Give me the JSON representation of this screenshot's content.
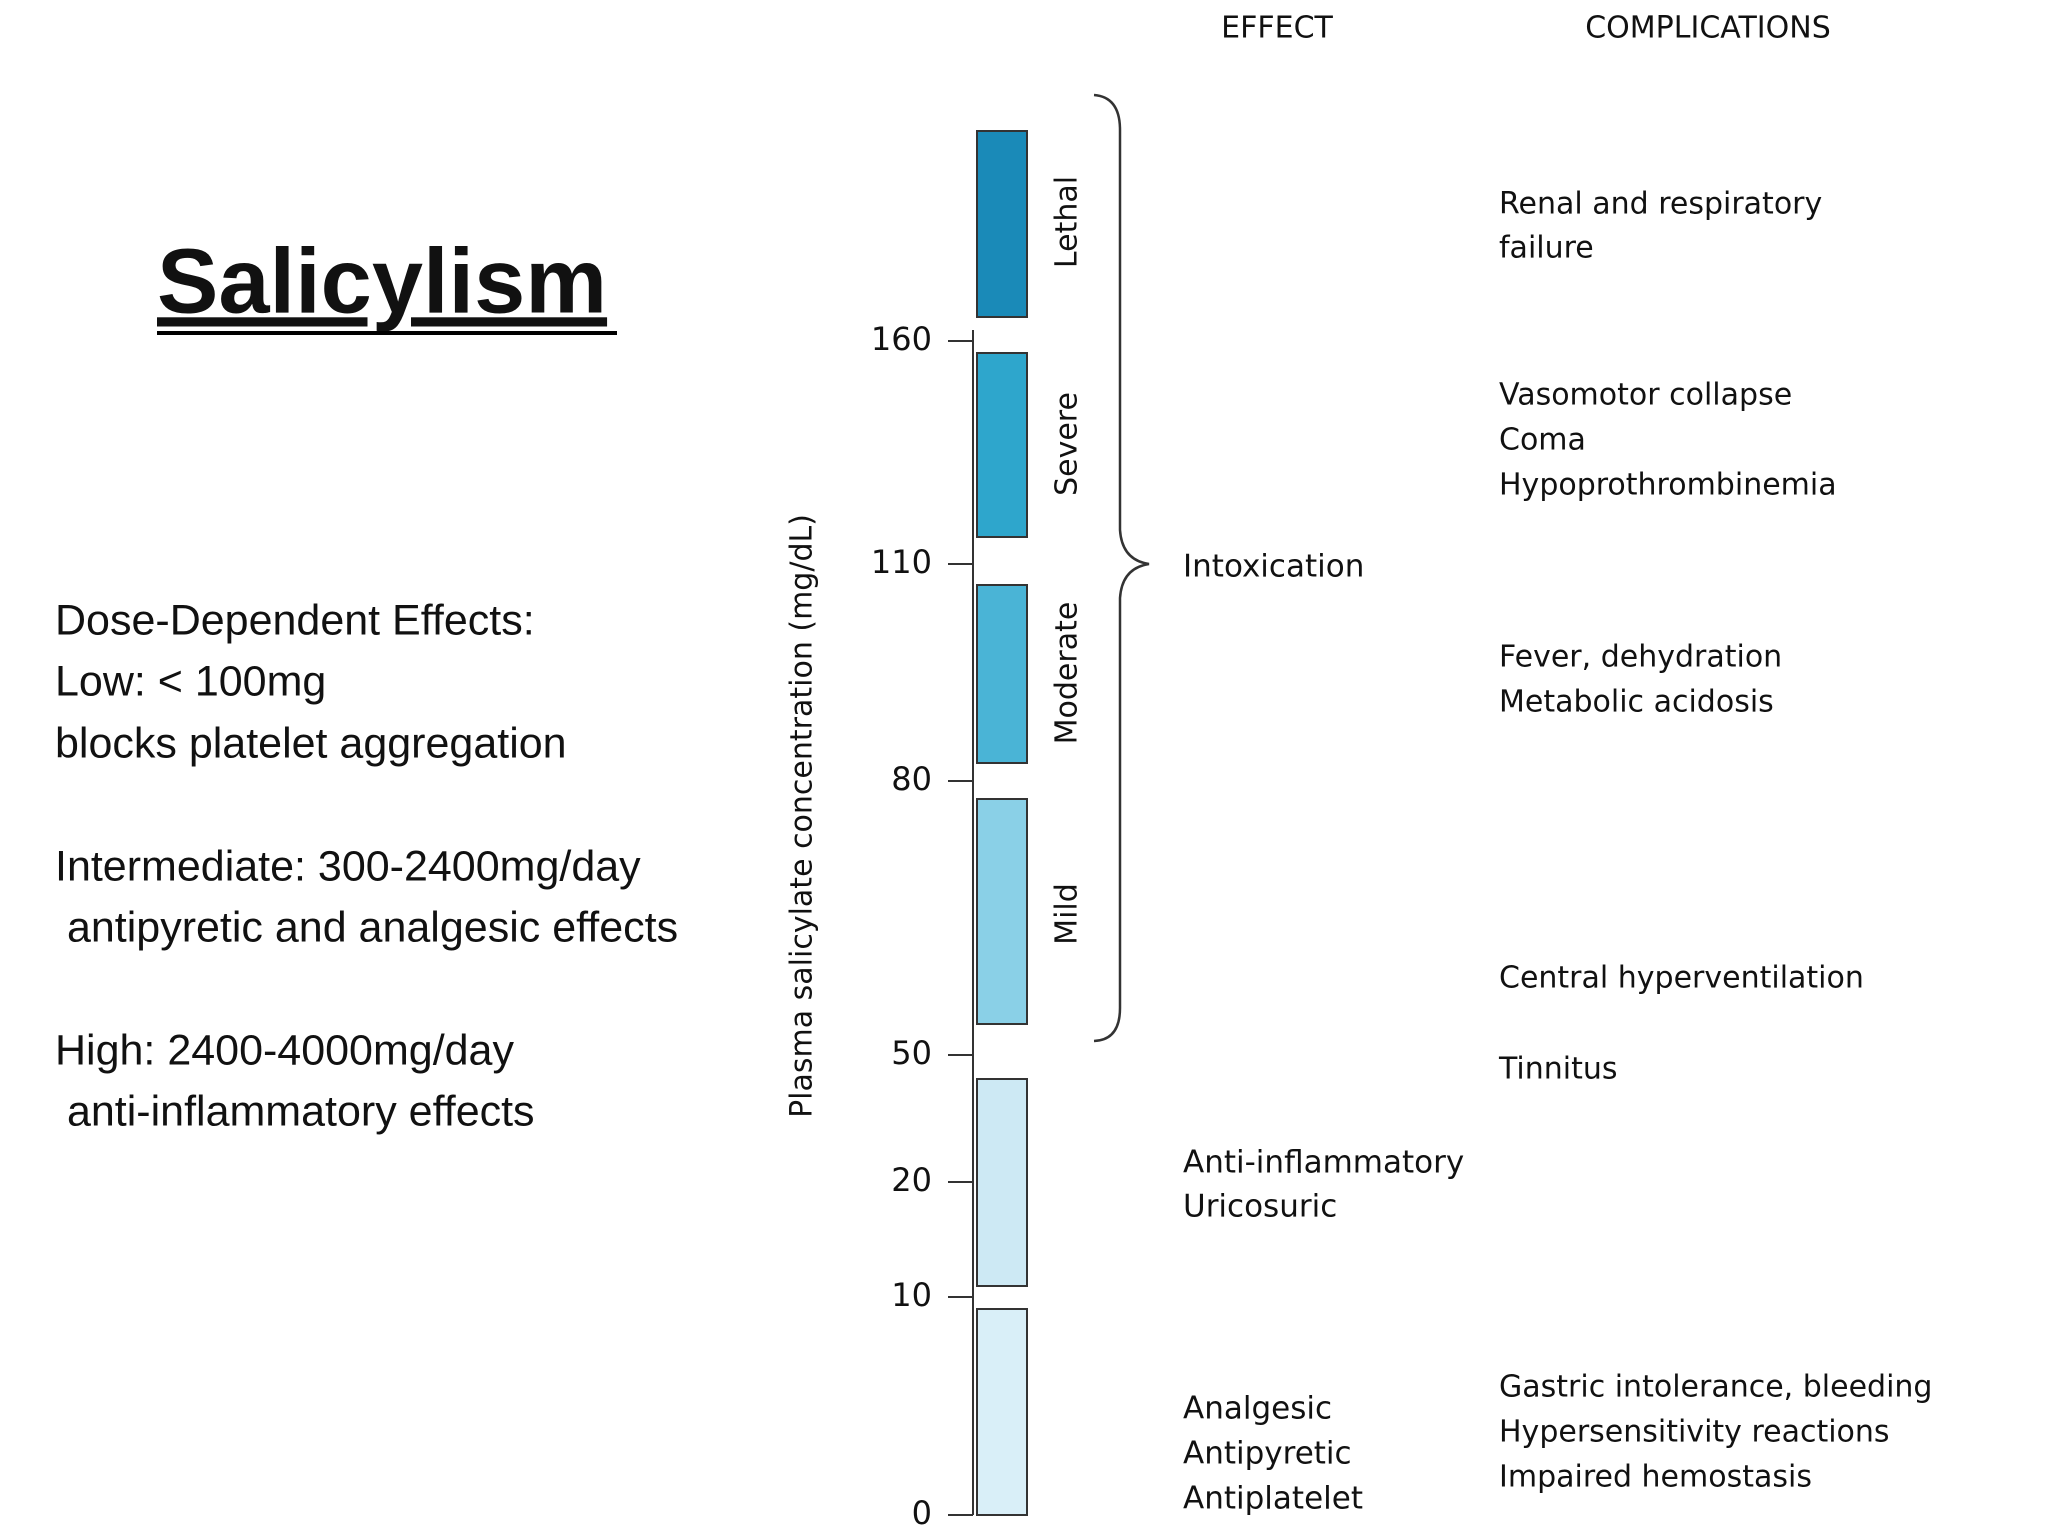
{
  "slide": {
    "title": "Salicylism",
    "notes": [
      "Dose-Dependent Effects:",
      "Low: < 100mg",
      "blocks platelet aggregation",
      "Intermediate: 300-2400mg/day",
      " antipyretic and analgesic effects",
      "High: 2400-4000mg/day",
      " anti-inflammatory effects"
    ]
  },
  "figure": {
    "axis_label": "Plasma salicylate concentration (mg/dL)",
    "ticks": [
      0,
      10,
      20,
      50,
      80,
      110,
      160
    ],
    "headers": {
      "effect": "EFFECT",
      "complications": "COMPLICATIONS"
    },
    "bands": [
      "Lethal",
      "Severe",
      "Moderate",
      "Mild"
    ],
    "effects": {
      "intoxication": "Intoxication",
      "mid": [
        "Anti-inflammatory",
        "Uricosuric"
      ],
      "low": [
        "Analgesic",
        "Antipyretic",
        "Antiplatelet"
      ]
    },
    "complications": [
      [
        "Renal and respiratory",
        "failure"
      ],
      [
        "Vasomotor collapse",
        "Coma",
        "Hypoprothrombinemia"
      ],
      [
        "Fever, dehydration",
        "Metabolic acidosis"
      ],
      [
        "Central hyperventilation"
      ],
      [
        "Tinnitus"
      ],
      [
        "Gastric intolerance, bleeding",
        "Hypersensitivity reactions",
        "Impaired hemostasis"
      ]
    ]
  }
}
